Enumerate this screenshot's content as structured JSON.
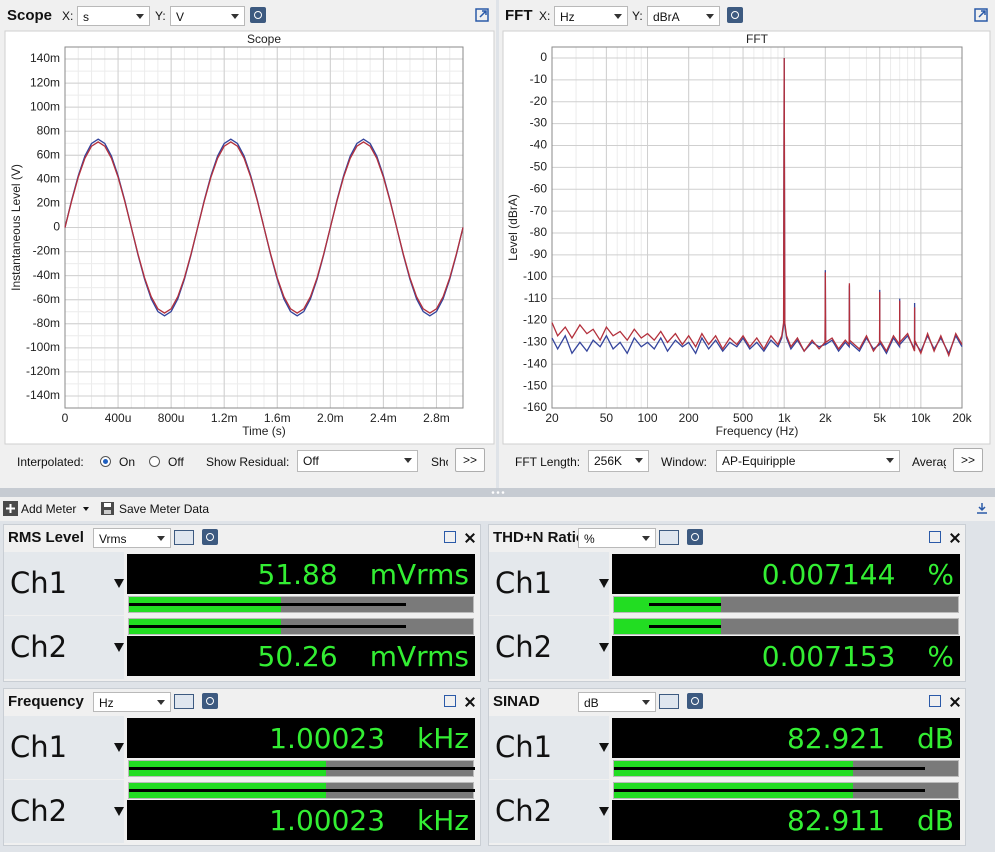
{
  "scope_panel": {
    "title": "Scope",
    "x_label": "X:",
    "x_unit": "s",
    "y_label": "Y:",
    "y_unit": "V",
    "controls": {
      "interpolated": "Interpolated:",
      "on": "On",
      "off": "Off",
      "show_residual": "Show Residual:",
      "residual_value": "Off",
      "clipped": "Sho",
      "more": ">>"
    }
  },
  "fft_panel": {
    "title": "FFT",
    "x_label": "X:",
    "x_unit": "Hz",
    "y_label": "Y:",
    "y_unit": "dBrA",
    "controls": {
      "fft_length": "FFT Length:",
      "fft_length_value": "256K",
      "window": "Window:",
      "window_value": "AP-Equiripple",
      "clipped": "Averag",
      "more": ">>"
    }
  },
  "chart_data": [
    {
      "type": "line",
      "title": "Scope",
      "x_label": "Time (s)",
      "y_label": "Instantaneous Level (V)",
      "x": [
        0,
        5e-05,
        0.0001,
        0.00015,
        0.0002,
        0.00025,
        0.0003,
        0.00035,
        0.0004,
        0.00045,
        0.0005,
        0.00055,
        0.0006,
        0.00065,
        0.0007,
        0.00075,
        0.0008,
        0.00085,
        0.0009,
        0.00095,
        0.001,
        0.00105,
        0.0011,
        0.00115,
        0.0012,
        0.00125,
        0.0013,
        0.00135,
        0.0014,
        0.00145,
        0.0015,
        0.00155,
        0.0016,
        0.00165,
        0.0017,
        0.00175,
        0.0018,
        0.00185,
        0.0019,
        0.00195,
        0.002,
        0.00205,
        0.0021,
        0.00215,
        0.0022,
        0.00225,
        0.0023,
        0.00235,
        0.0024,
        0.00245,
        0.0025,
        0.00255,
        0.0026,
        0.00265,
        0.0027,
        0.00275,
        0.0028,
        0.00285,
        0.0029,
        0.00295,
        0.003
      ],
      "series": [
        {
          "color": "#34449c",
          "values": [
            0,
            0.0227,
            0.0431,
            0.0594,
            0.0698,
            0.0734,
            0.0698,
            0.0594,
            0.0431,
            0.0227,
            0,
            -0.0227,
            -0.0431,
            -0.0594,
            -0.0698,
            -0.0734,
            -0.0698,
            -0.0594,
            -0.0431,
            -0.0227,
            0,
            0.0227,
            0.0431,
            0.0594,
            0.0698,
            0.0734,
            0.0698,
            0.0594,
            0.0431,
            0.0227,
            0,
            -0.0227,
            -0.0431,
            -0.0594,
            -0.0698,
            -0.0734,
            -0.0698,
            -0.0594,
            -0.0431,
            -0.0227,
            0,
            0.0227,
            0.0431,
            0.0594,
            0.0698,
            0.0734,
            0.0698,
            0.0594,
            0.0431,
            0.0227,
            0,
            -0.0227,
            -0.0431,
            -0.0594,
            -0.0698,
            -0.0734,
            -0.0698,
            -0.0594,
            -0.0431,
            -0.0227,
            0
          ]
        },
        {
          "color": "#b3303c",
          "values": [
            0,
            0.022,
            0.0418,
            0.0575,
            0.0676,
            0.0711,
            0.0676,
            0.0575,
            0.0418,
            0.022,
            0,
            -0.022,
            -0.0418,
            -0.0575,
            -0.0676,
            -0.0711,
            -0.0676,
            -0.0575,
            -0.0418,
            -0.022,
            0,
            0.022,
            0.0418,
            0.0575,
            0.0676,
            0.0711,
            0.0676,
            0.0575,
            0.0418,
            0.022,
            0,
            -0.022,
            -0.0418,
            -0.0575,
            -0.0676,
            -0.0711,
            -0.0676,
            -0.0575,
            -0.0418,
            -0.022,
            0,
            0.022,
            0.0418,
            0.0575,
            0.0676,
            0.0711,
            0.0676,
            0.0575,
            0.0418,
            0.022,
            0,
            -0.022,
            -0.0418,
            -0.0575,
            -0.0676,
            -0.0711,
            -0.0676,
            -0.0575,
            -0.0418,
            -0.022,
            0
          ]
        }
      ],
      "xlim": [
        0,
        0.003
      ],
      "xticks": [
        0,
        {
          "value": 0.0004,
          "label": "400u"
        },
        {
          "value": 0.0008,
          "label": "800u"
        },
        {
          "value": 0.0012,
          "label": "1.2m"
        },
        {
          "value": 0.0016,
          "label": "1.6m"
        },
        {
          "value": 0.002,
          "label": "2.0m"
        },
        {
          "value": 0.0024,
          "label": "2.4m"
        },
        {
          "value": 0.0028,
          "label": "2.8m"
        }
      ],
      "ylim": [
        -0.15,
        0.15
      ],
      "yticks": [
        {
          "value": 0.14,
          "label": "140m"
        },
        {
          "value": 0.12,
          "label": "120m"
        },
        {
          "value": 0.1,
          "label": "100m"
        },
        {
          "value": 0.08,
          "label": "80m"
        },
        {
          "value": 0.06,
          "label": "60m"
        },
        {
          "value": 0.04,
          "label": "40m"
        },
        {
          "value": 0.02,
          "label": "20m"
        },
        0,
        {
          "value": -0.02,
          "label": "-20m"
        },
        {
          "value": -0.04,
          "label": "-40m"
        },
        {
          "value": -0.06,
          "label": "-60m"
        },
        {
          "value": -0.08,
          "label": "-80m"
        },
        {
          "value": -0.1,
          "label": "-100m"
        },
        {
          "value": -0.12,
          "label": "-120m"
        },
        {
          "value": -0.14,
          "label": "-140m"
        }
      ],
      "grid": true,
      "xlog": false
    },
    {
      "type": "line",
      "title": "FFT",
      "x_label": "Frequency (Hz)",
      "y_label": "Level (dBrA)",
      "x": [
        20,
        22,
        25,
        28,
        32,
        36,
        40,
        45,
        50,
        56,
        63,
        71,
        80,
        90,
        100,
        112,
        125,
        140,
        160,
        180,
        200,
        225,
        250,
        280,
        315,
        355,
        400,
        450,
        500,
        560,
        630,
        710,
        800,
        900,
        960,
        990,
        1000,
        1010,
        1040,
        1120,
        1250,
        1400,
        1600,
        1800,
        1990,
        2000,
        2010,
        2240,
        2500,
        2800,
        2990,
        3000,
        3010,
        3550,
        4000,
        4500,
        4990,
        5000,
        5010,
        5600,
        6300,
        6990,
        7000,
        7010,
        8000,
        8990,
        9000,
        9010,
        10000,
        11200,
        12500,
        14000,
        16000,
        18000,
        20000
      ],
      "series": [
        {
          "color": "#34449c",
          "values": [
            -128,
            -133,
            -127,
            -135,
            -130,
            -134,
            -129,
            -132,
            -127,
            -133,
            -130,
            -135,
            -128,
            -132,
            -130,
            -133,
            -128,
            -134,
            -129,
            -132,
            -130,
            -135,
            -128,
            -133,
            -129,
            -134,
            -130,
            -132,
            -128,
            -133,
            -130,
            -134,
            -129,
            -132,
            -128,
            -122,
            0,
            -122,
            -128,
            -133,
            -129,
            -134,
            -130,
            -132,
            -131,
            -97,
            -131,
            -129,
            -134,
            -130,
            -132,
            -104,
            -130,
            -134,
            -128,
            -133,
            -131,
            -106,
            -130,
            -135,
            -128,
            -132,
            -110,
            -131,
            -127,
            -133,
            -112,
            -130,
            -134,
            -127,
            -133,
            -128,
            -135,
            -127,
            -132
          ]
        },
        {
          "color": "#b3303c",
          "values": [
            -121,
            -127,
            -123,
            -128,
            -122,
            -126,
            -124,
            -129,
            -123,
            -127,
            -125,
            -129,
            -124,
            -128,
            -126,
            -129,
            -125,
            -130,
            -126,
            -131,
            -127,
            -132,
            -126,
            -131,
            -127,
            -133,
            -128,
            -131,
            -127,
            -132,
            -128,
            -133,
            -127,
            -131,
            -127,
            -121,
            0,
            -121,
            -127,
            -132,
            -128,
            -134,
            -129,
            -133,
            -130,
            -98,
            -130,
            -128,
            -133,
            -129,
            -131,
            -103,
            -129,
            -133,
            -127,
            -134,
            -130,
            -107,
            -129,
            -134,
            -127,
            -131,
            -111,
            -130,
            -126,
            -134,
            -114,
            -129,
            -135,
            -126,
            -134,
            -127,
            -136,
            -126,
            -131
          ]
        }
      ],
      "xlim": [
        20,
        20000
      ],
      "xticks": [
        20,
        50,
        100,
        200,
        500,
        {
          "value": 1000,
          "label": "1k"
        },
        {
          "value": 2000,
          "label": "2k"
        },
        {
          "value": 5000,
          "label": "5k"
        },
        {
          "value": 10000,
          "label": "10k"
        },
        {
          "value": 20000,
          "label": "20k"
        }
      ],
      "ylim": [
        -160,
        5
      ],
      "yticks": [
        0,
        -10,
        -20,
        -30,
        -40,
        -50,
        -60,
        -70,
        -80,
        -90,
        -100,
        -110,
        -120,
        -130,
        -140,
        -150,
        -160
      ],
      "grid": true,
      "xlog": true
    }
  ],
  "toolbar": {
    "add_meter": "Add Meter",
    "save": "Save Meter Data"
  },
  "meters": [
    {
      "title": "RMS Level",
      "unit": "Vrms",
      "channels": [
        {
          "label": "Ch1",
          "reading": "51.88",
          "unit": "mVrms"
        },
        {
          "label": "Ch2",
          "reading": "50.26",
          "unit": "mVrms"
        }
      ]
    },
    {
      "title": "THD+N Ratio",
      "unit": "%",
      "channels": [
        {
          "label": "Ch1",
          "reading": "0.007144",
          "unit": "%"
        },
        {
          "label": "Ch2",
          "reading": "0.007153",
          "unit": "%"
        }
      ]
    },
    {
      "title": "Frequency",
      "unit": "Hz",
      "channels": [
        {
          "label": "Ch1",
          "reading": "1.00023",
          "unit": "kHz"
        },
        {
          "label": "Ch2",
          "reading": "1.00023",
          "unit": "kHz"
        }
      ]
    },
    {
      "title": "SINAD",
      "unit": "dB",
      "channels": [
        {
          "label": "Ch1",
          "reading": "82.921",
          "unit": "dB"
        },
        {
          "label": "Ch2",
          "reading": "82.911",
          "unit": "dB"
        }
      ]
    }
  ]
}
